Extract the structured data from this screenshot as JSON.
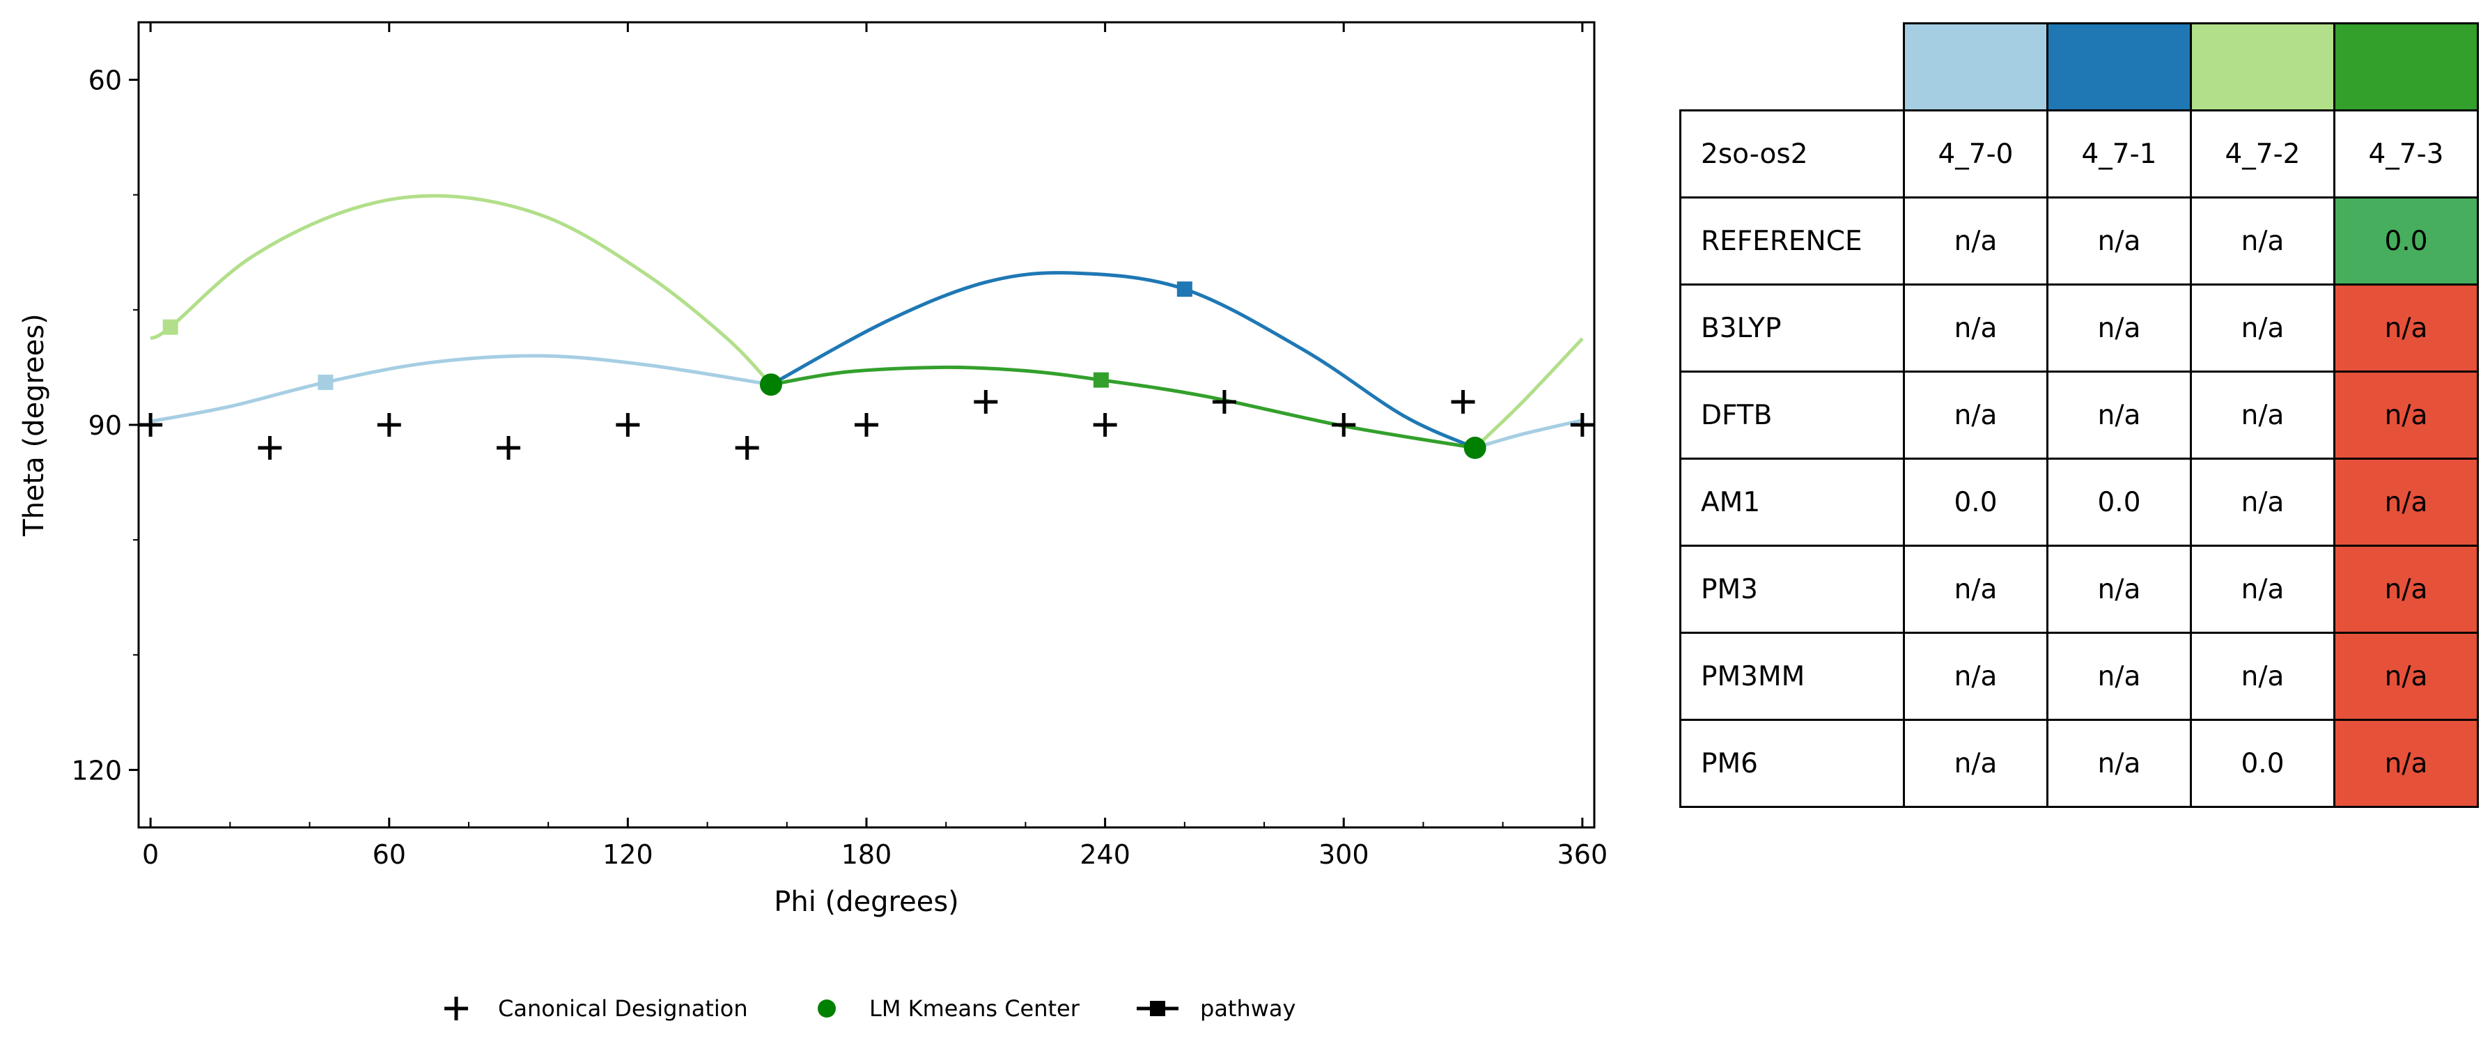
{
  "chart_data": [
    {
      "type": "scatter",
      "xlabel": "Phi (degrees)",
      "ylabel": "Theta (degrees)",
      "xlim": [
        -3,
        363
      ],
      "ylim": [
        125,
        55
      ],
      "y_inverted": true,
      "x_ticks": [
        0,
        60,
        120,
        180,
        240,
        300,
        360
      ],
      "x_tick_labels": [
        "0",
        "60",
        "120",
        "180",
        "240",
        "300",
        "360"
      ],
      "y_ticks": [
        60,
        90,
        120
      ],
      "y_tick_labels": [
        "60",
        "90",
        "120"
      ],
      "grid": false,
      "legend_placement": "bottom",
      "legend": [
        {
          "label": "Canonical Designation",
          "marker": "plus"
        },
        {
          "label": "LM Kmeans Center",
          "marker": "circle"
        },
        {
          "label": "pathway",
          "marker": "line-square"
        }
      ],
      "canonical_designations": [
        [
          0,
          90
        ],
        [
          60,
          90
        ],
        [
          120,
          90
        ],
        [
          180,
          90
        ],
        [
          240,
          90
        ],
        [
          300,
          90
        ],
        [
          360,
          90
        ],
        [
          30,
          92
        ],
        [
          90,
          92
        ],
        [
          150,
          92
        ],
        [
          210,
          88
        ],
        [
          270,
          88
        ],
        [
          330,
          88
        ]
      ],
      "lm_kmeans_centers": [
        [
          156,
          86.5
        ],
        [
          333,
          92
        ]
      ],
      "pathways": [
        {
          "color": "#a6cee3",
          "points": [
            [
              0,
              89.7
            ],
            [
              20,
              88.4
            ],
            [
              44,
              86.3
            ],
            [
              70,
              84.6
            ],
            [
              98,
              84
            ],
            [
              125,
              84.8
            ],
            [
              156,
              86.5
            ]
          ]
        },
        {
          "color": "#a6cee3",
          "points": [
            [
              333,
              92
            ],
            [
              345,
              90.8
            ],
            [
              360,
              89.6
            ]
          ]
        },
        {
          "color": "#1f78b4",
          "points": [
            [
              156,
              86.5
            ],
            [
              185,
              81
            ],
            [
              210,
              77.6
            ],
            [
              232,
              76.8
            ],
            [
              260,
              78.2
            ],
            [
              290,
              83.5
            ],
            [
              315,
              89.2
            ],
            [
              333,
              92
            ]
          ]
        },
        {
          "color": "#b2df8a",
          "points": [
            [
              0,
              82.5
            ],
            [
              5,
              81.5
            ],
            [
              25,
              75.5
            ],
            [
              50,
              71.3
            ],
            [
              74,
              70.1
            ],
            [
              100,
              72
            ],
            [
              125,
              77
            ],
            [
              145,
              82.5
            ],
            [
              156,
              86.5
            ]
          ]
        },
        {
          "color": "#b2df8a",
          "points": [
            [
              333,
              92
            ],
            [
              345,
              88
            ],
            [
              360,
              82.5
            ]
          ]
        },
        {
          "color": "#33a02c",
          "points": [
            [
              156,
              86.5
            ],
            [
              175,
              85.4
            ],
            [
              200,
              85
            ],
            [
              220,
              85.3
            ],
            [
              239,
              86.1
            ],
            [
              265,
              87.5
            ],
            [
              300,
              90.1
            ],
            [
              333,
              92
            ]
          ]
        }
      ],
      "pathway_markers": [
        {
          "color": "#b2df8a",
          "x": 5,
          "y": 81.5
        },
        {
          "color": "#a6cee3",
          "x": 44,
          "y": 86.3
        },
        {
          "color": "#1f78b4",
          "x": 260,
          "y": 78.2
        },
        {
          "color": "#33a02c",
          "x": 239,
          "y": 86.1
        }
      ]
    },
    {
      "type": "table",
      "header_colors": [
        "#a6cee3",
        "#1f78b4",
        "#b2df8a",
        "#33a02c"
      ],
      "rows": [
        {
          "label": "2so-os2",
          "cells": [
            "4_7-0",
            "4_7-1",
            "4_7-2",
            "4_7-3"
          ],
          "colors": [
            "",
            "",
            "",
            ""
          ]
        },
        {
          "label": "REFERENCE",
          "cells": [
            "n/a",
            "n/a",
            "n/a",
            "0.0"
          ],
          "colors": [
            "",
            "",
            "",
            "#46ae5c"
          ]
        },
        {
          "label": "B3LYP",
          "cells": [
            "n/a",
            "n/a",
            "n/a",
            "n/a"
          ],
          "colors": [
            "",
            "",
            "",
            "#e6513a"
          ]
        },
        {
          "label": "DFTB",
          "cells": [
            "n/a",
            "n/a",
            "n/a",
            "n/a"
          ],
          "colors": [
            "",
            "",
            "",
            "#e6513a"
          ]
        },
        {
          "label": "AM1",
          "cells": [
            "0.0",
            "0.0",
            "n/a",
            "n/a"
          ],
          "colors": [
            "",
            "",
            "",
            "#e6513a"
          ]
        },
        {
          "label": "PM3",
          "cells": [
            "n/a",
            "n/a",
            "n/a",
            "n/a"
          ],
          "colors": [
            "",
            "",
            "",
            "#e6513a"
          ]
        },
        {
          "label": "PM3MM",
          "cells": [
            "n/a",
            "n/a",
            "n/a",
            "n/a"
          ],
          "colors": [
            "",
            "",
            "",
            "#e6513a"
          ]
        },
        {
          "label": "PM6",
          "cells": [
            "n/a",
            "n/a",
            "0.0",
            "n/a"
          ],
          "colors": [
            "",
            "",
            "",
            "#e6513a"
          ]
        }
      ]
    }
  ]
}
